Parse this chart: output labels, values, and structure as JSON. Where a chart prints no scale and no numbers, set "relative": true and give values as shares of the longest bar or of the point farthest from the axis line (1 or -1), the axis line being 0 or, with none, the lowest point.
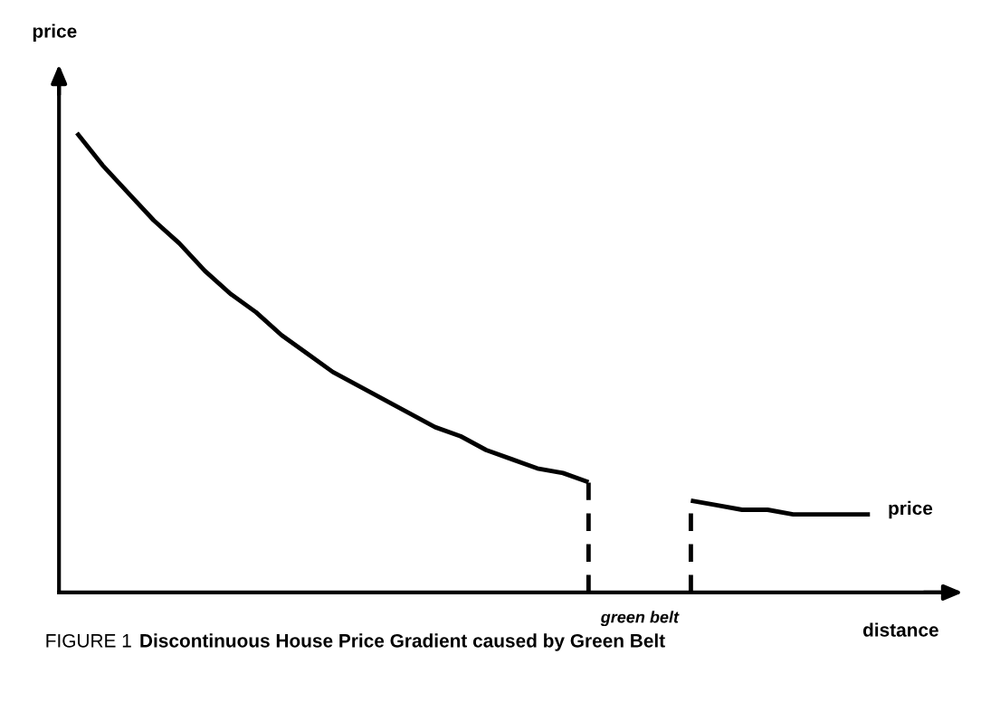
{
  "chart_data": {
    "type": "line",
    "relative": true,
    "title": "Discontinuous House Price Gradient caused by Green Belt",
    "xlabel": "distance",
    "ylabel": "price",
    "tick_labels": false,
    "marker": "none",
    "categories": [
      null,
      null,
      null,
      null,
      null,
      null,
      null,
      null,
      null,
      null,
      null,
      null,
      null,
      null,
      null,
      null,
      null,
      null,
      null,
      null,
      null,
      null,
      null,
      null,
      null,
      null,
      null,
      null,
      null,
      null,
      null,
      null
    ],
    "series": [
      {
        "color": "#000000",
        "values": [
          1.0,
          0.93,
          0.87,
          0.81,
          0.76,
          0.7,
          0.65,
          0.61,
          0.56,
          0.52,
          0.48,
          0.45,
          0.42,
          0.39,
          0.36,
          0.34,
          0.31,
          0.29,
          0.27,
          0.26,
          0.24,
          null,
          null,
          null,
          null,
          null,
          null,
          null,
          null,
          null,
          null,
          null
        ]
      },
      {
        "name": "price",
        "color": "#000000",
        "values": [
          null,
          null,
          null,
          null,
          null,
          null,
          null,
          null,
          null,
          null,
          null,
          null,
          null,
          null,
          null,
          null,
          null,
          null,
          null,
          null,
          null,
          null,
          null,
          null,
          0.2,
          0.19,
          0.18,
          0.18,
          0.17,
          0.17,
          0.17,
          0.17
        ]
      }
    ],
    "annotations": [
      "FIGURE 1",
      "green belt"
    ]
  }
}
